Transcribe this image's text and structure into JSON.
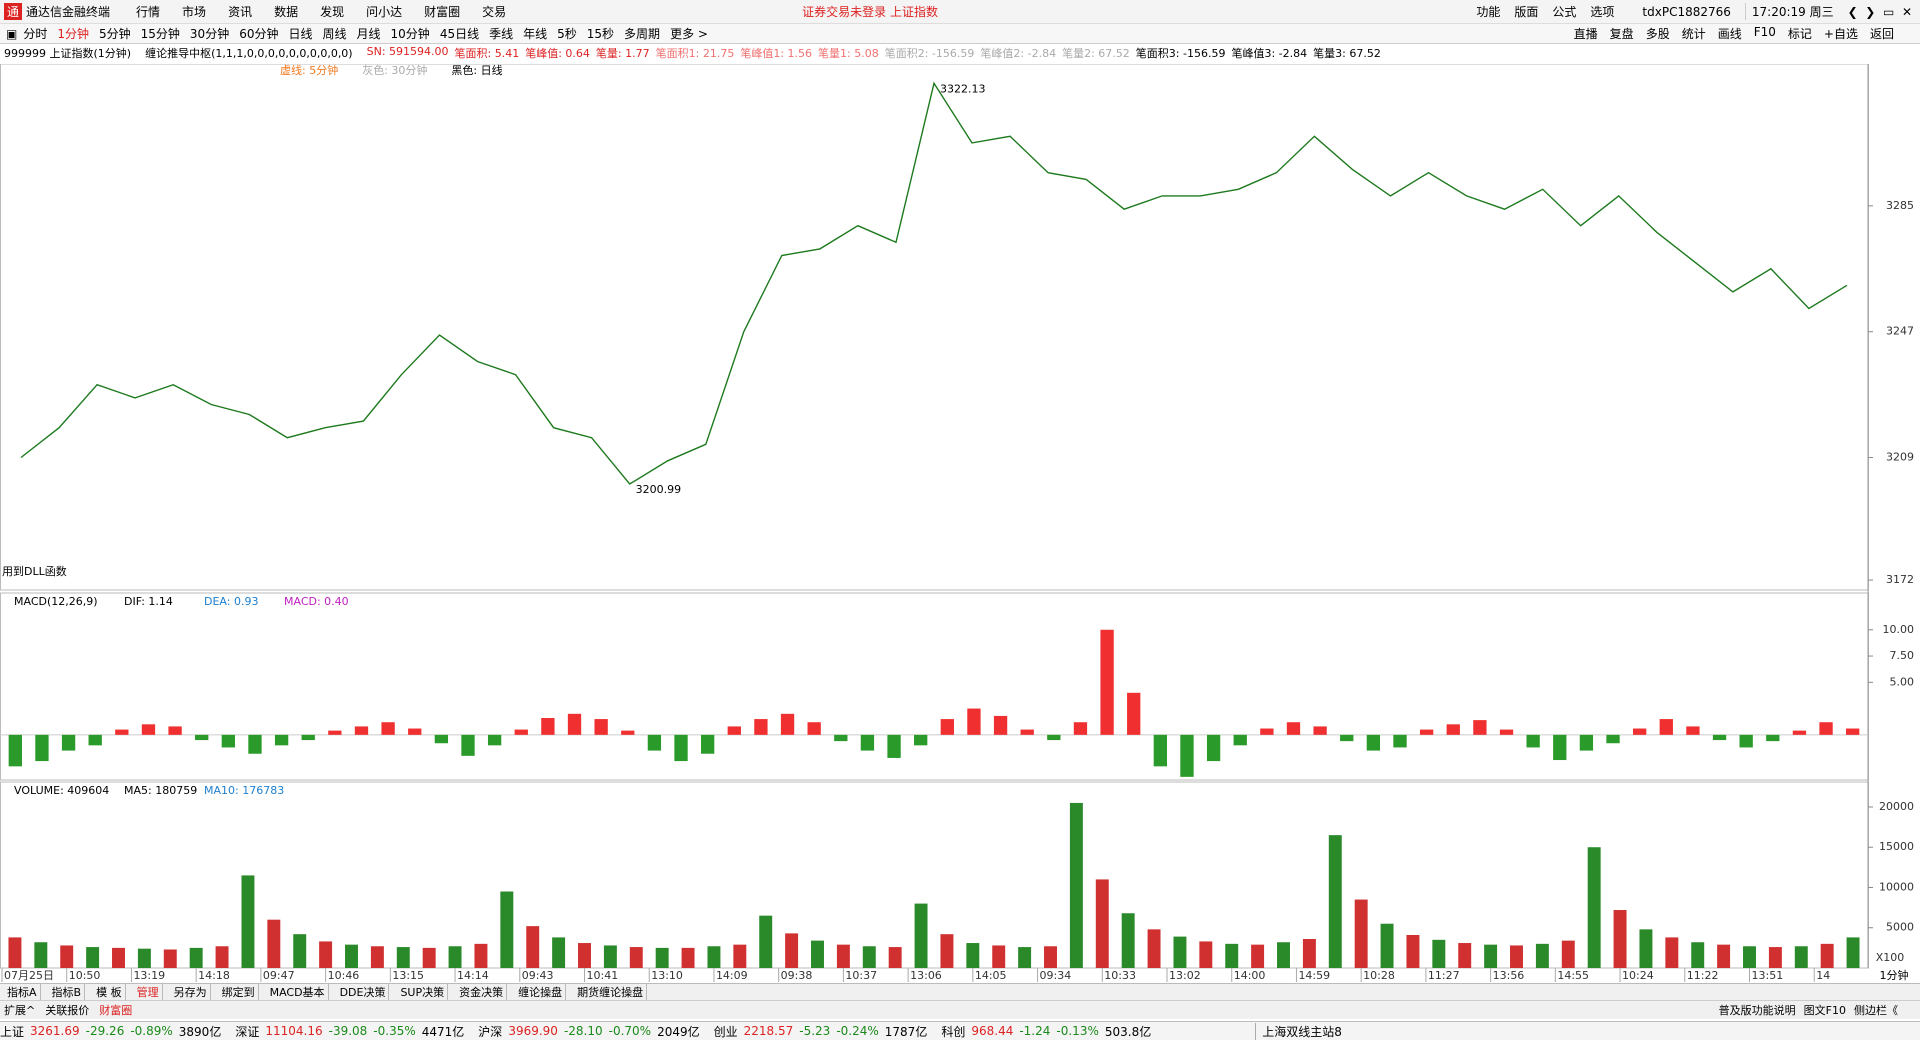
{
  "title_bar": {
    "app": "通达信金融终端",
    "menu": [
      "行情",
      "市场",
      "资讯",
      "数据",
      "发现",
      "问小达",
      "财富圈",
      "交易"
    ],
    "notice": "证券交易未登录  上证指数",
    "right": [
      "功能",
      "版面",
      "公式",
      "选项"
    ],
    "user": "tdxPC1882766",
    "clock": "17:20:19 周三"
  },
  "toolbar": {
    "periods": [
      "分时",
      "1分钟",
      "5分钟",
      "15分钟",
      "30分钟",
      "60分钟",
      "日线",
      "周线",
      "月线",
      "10分钟",
      "45日线",
      "季线",
      "年线",
      "5秒",
      "15秒",
      "多周期",
      "更多 >"
    ],
    "right": [
      "直播",
      "复盘",
      "多股",
      "统计",
      "画线",
      "F10",
      "标记",
      "+自选",
      "返回"
    ]
  },
  "chart_header": {
    "symbol": "999999 上证指数(1分钟)",
    "indicator": "缠论推导中枢(1,1,1,0,0,0,0,0,0,0,0,0,0)",
    "stats": [
      "SN: 591594.00",
      "笔面积: 5.41",
      "笔峰值: 0.64",
      "笔量: 1.77",
      "笔面积1: 21.75",
      "笔峰值1: 1.56",
      "笔量1: 5.08",
      "笔面积2: -156.59",
      "笔峰值2: -2.84",
      "笔量2: 67.52",
      "笔面积3: -156.59",
      "笔峰值3: -2.84",
      "笔量3: 67.52"
    ],
    "legend": [
      "虚线: 5分钟",
      "灰色: 30分钟",
      "黑色: 日线"
    ]
  },
  "chart_data": [
    {
      "type": "line",
      "color": "#1e7a1e",
      "ylim": [
        3169,
        3323
      ],
      "yticks": [
        3172,
        3209,
        3247,
        3285
      ],
      "high_label": "3322.13",
      "low_label": "3200.99",
      "note": "用到DLL函数",
      "values": [
        3209,
        3218,
        3231,
        3227,
        3231,
        3225,
        3222,
        3215,
        3218,
        3220,
        3234,
        3246,
        3238,
        3234,
        3218,
        3215,
        3201,
        3208,
        3213,
        3247,
        3270,
        3272,
        3279,
        3274,
        3322,
        3304,
        3306,
        3295,
        3293,
        3284,
        3288,
        3288,
        3290,
        3295,
        3306,
        3296,
        3288,
        3295,
        3288,
        3284,
        3290,
        3279,
        3288,
        3277,
        3268,
        3259,
        3266,
        3254,
        3261
      ]
    },
    {
      "type": "bar",
      "header": [
        "MACD(12,26,9)",
        "DIF: 1.14",
        "DEA: 0.93",
        "MACD: 0.40"
      ],
      "color_up": "#f03030",
      "color_down": "#2a9a2a",
      "ylim": [
        -4.3,
        13.5
      ],
      "yticks": [
        {
          "value": 5,
          "label": "5.00"
        },
        {
          "value": 7.5,
          "label": "7.50"
        },
        {
          "value": 10,
          "label": "10.00"
        }
      ],
      "values": [
        -3,
        -2.5,
        -1.5,
        -1,
        0.5,
        1,
        0.8,
        -0.5,
        -1.2,
        -1.8,
        -1,
        -0.5,
        0.4,
        0.8,
        1.2,
        0.6,
        -0.8,
        -2,
        -1,
        0.5,
        1.6,
        2,
        1.5,
        0.4,
        -1.5,
        -2.5,
        -1.8,
        0.8,
        1.5,
        2,
        1.2,
        -0.6,
        -1.5,
        -2.2,
        -1,
        1.5,
        2.5,
        1.8,
        0.5,
        -0.5,
        1.2,
        10,
        4,
        -3,
        -4,
        -2.5,
        -1,
        0.6,
        1.2,
        0.8,
        -0.6,
        -1.5,
        -1.2,
        0.5,
        1,
        1.4,
        0.5,
        -1.2,
        -2.4,
        -1.5,
        -0.8,
        0.6,
        1.5,
        0.8,
        -0.5,
        -1.2,
        -0.6,
        0.4,
        1.2,
        0.6
      ]
    },
    {
      "type": "bar",
      "header": [
        "VOLUME: 409604",
        "MA5: 180759",
        "MA10: 176783"
      ],
      "unit": "X100",
      "colors": [
        "#d03030",
        "#2a8a2a"
      ],
      "ylim": [
        0,
        23100
      ],
      "yticks": [
        5000,
        10000,
        15000,
        20000
      ],
      "values": [
        3800,
        3200,
        2800,
        2600,
        2500,
        2400,
        2300,
        2500,
        2700,
        11500,
        6000,
        4200,
        3300,
        2900,
        2700,
        2600,
        2500,
        2700,
        3000,
        9500,
        5200,
        3800,
        3100,
        2800,
        2600,
        2500,
        2500,
        2700,
        2900,
        6500,
        4300,
        3400,
        2900,
        2700,
        2600,
        8000,
        4200,
        3100,
        2800,
        2600,
        2700,
        20500,
        11000,
        6800,
        4800,
        3900,
        3300,
        3000,
        2900,
        3200,
        3600,
        16500,
        8500,
        5500,
        4100,
        3500,
        3100,
        2900,
        2800,
        3000,
        3400,
        15000,
        7200,
        4800,
        3800,
        3200,
        2900,
        2700,
        2600,
        2700,
        3000,
        3800
      ],
      "time_labels": [
        "07月25日",
        "10:50",
        "13:19",
        "14:18",
        "09:47",
        "10:46",
        "13:15",
        "14:14",
        "09:43",
        "10:41",
        "13:10",
        "14:09",
        "09:38",
        "10:37",
        "13:06",
        "14:05",
        "09:34",
        "10:33",
        "13:02",
        "14:00",
        "14:59",
        "10:28",
        "11:27",
        "13:56",
        "14:55",
        "10:24",
        "11:22",
        "13:51",
        "14"
      ],
      "period": "1分钟"
    }
  ],
  "tabs": [
    "指标A",
    "指标B",
    "模 板",
    "管理",
    "另存为",
    "绑定到",
    "MACD基本",
    "DDE决策",
    "SUP决策",
    "资金决策",
    "缠论操盘",
    "期货缠论操盘"
  ],
  "tabs2": {
    "left": [
      "扩展^",
      "关联报价",
      "财富圈"
    ],
    "right": [
      "普及版功能说明",
      "图文F10",
      "侧边栏《"
    ]
  },
  "status": {
    "items": [
      [
        "上证",
        "3261.69",
        "-29.26",
        "-0.89%",
        "3890亿"
      ],
      [
        "深证",
        "11104.16",
        "-39.08",
        "-0.35%",
        "4471亿"
      ],
      [
        "沪深",
        "3969.90",
        "-28.10",
        "-0.70%",
        "2049亿"
      ],
      [
        "创业",
        "2218.57",
        "-5.23",
        "-0.24%",
        "1787亿"
      ],
      [
        "科创",
        "968.44",
        "-1.24",
        "-0.13%",
        "503.8亿"
      ]
    ],
    "server": "上海双线主站8"
  }
}
